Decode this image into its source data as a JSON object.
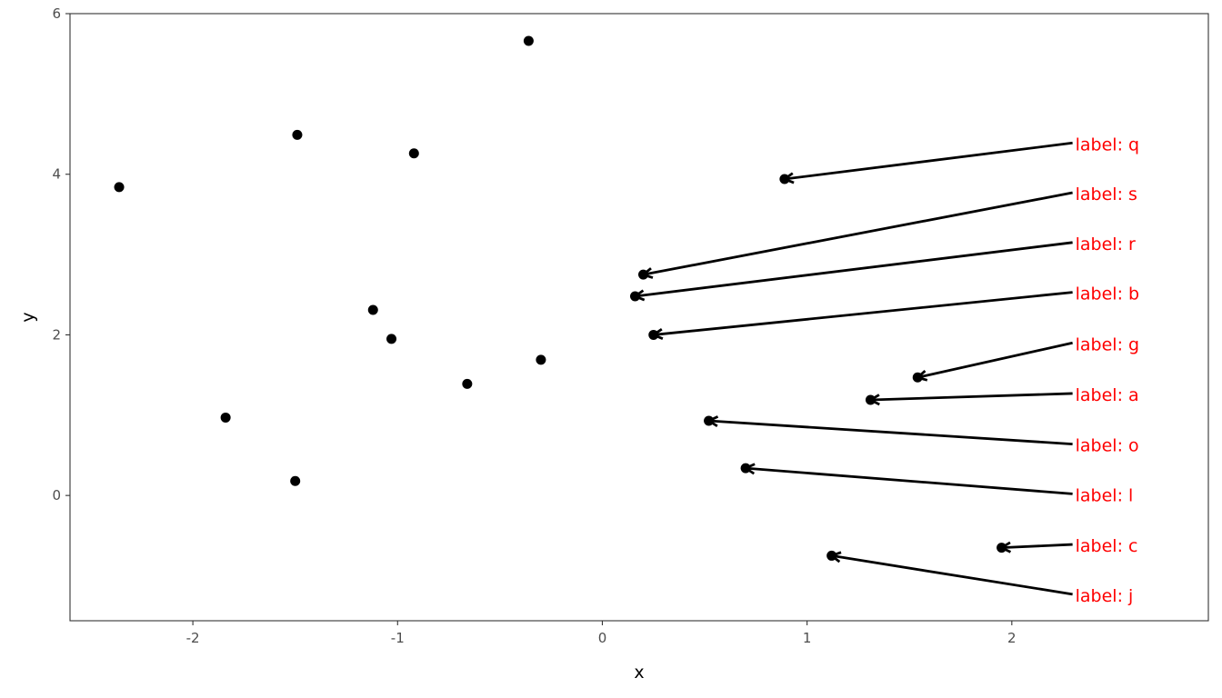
{
  "chart_data": {
    "type": "scatter",
    "title": "",
    "xlabel": "x",
    "ylabel": "y",
    "xlim": [
      -2.6,
      2.96
    ],
    "ylim": [
      -1.56,
      6.0
    ],
    "xticks": [
      -2,
      -1,
      0,
      1,
      2
    ],
    "yticks": [
      0,
      2,
      4,
      6
    ],
    "xtick_labels": [
      "-2",
      "-1",
      "0",
      "1",
      "2"
    ],
    "ytick_labels": [
      "0",
      "2",
      "4",
      "6"
    ],
    "grid": false,
    "point_color": "#000000",
    "label_color": "#ff0000",
    "points": [
      {
        "x": -0.36,
        "y": 5.66
      },
      {
        "x": -1.49,
        "y": 4.49
      },
      {
        "x": -0.92,
        "y": 4.26
      },
      {
        "x": -2.36,
        "y": 3.84
      },
      {
        "x": -1.12,
        "y": 2.31
      },
      {
        "x": -1.03,
        "y": 1.95
      },
      {
        "x": -0.3,
        "y": 1.69
      },
      {
        "x": -0.66,
        "y": 1.39
      },
      {
        "x": -1.84,
        "y": 0.97
      },
      {
        "x": -1.5,
        "y": 0.18
      },
      {
        "x": 0.89,
        "y": 3.94,
        "label": "label: q",
        "label_x": 2.31,
        "label_y": 4.39
      },
      {
        "x": 0.2,
        "y": 2.75,
        "label": "label: s",
        "label_x": 2.31,
        "label_y": 3.77
      },
      {
        "x": 0.16,
        "y": 2.48,
        "label": "label: r",
        "label_x": 2.31,
        "label_y": 3.15
      },
      {
        "x": 0.25,
        "y": 2.0,
        "label": "label: b",
        "label_x": 2.31,
        "label_y": 2.53
      },
      {
        "x": 1.54,
        "y": 1.47,
        "label": "label: g",
        "label_x": 2.31,
        "label_y": 1.9
      },
      {
        "x": 1.31,
        "y": 1.19,
        "label": "label: a",
        "label_x": 2.31,
        "label_y": 1.27
      },
      {
        "x": 0.52,
        "y": 0.93,
        "label": "label: o",
        "label_x": 2.31,
        "label_y": 0.64
      },
      {
        "x": 0.7,
        "y": 0.34,
        "label": "label: l",
        "label_x": 2.31,
        "label_y": 0.02
      },
      {
        "x": 1.95,
        "y": -0.65,
        "label": "label: c",
        "label_x": 2.31,
        "label_y": -0.61
      },
      {
        "x": 1.12,
        "y": -0.75,
        "label": "label: j",
        "label_x": 2.31,
        "label_y": -1.23
      }
    ]
  }
}
